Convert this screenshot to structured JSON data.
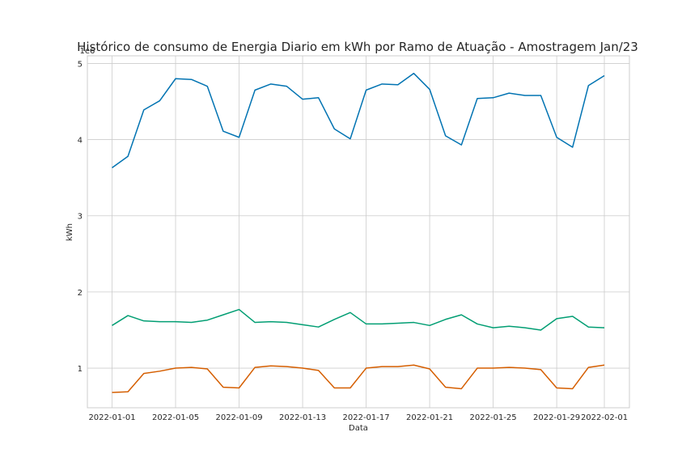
{
  "chart_data": {
    "type": "line",
    "title": "Histórico de consumo de Energia Diario em kWh por Ramo de Atuação - Amostragem Jan/23",
    "xlabel": "Data",
    "ylabel": "kWh",
    "y_offset_label": "1e6",
    "ylim": [
      0.48,
      5.1
    ],
    "y_ticks": [
      1,
      2,
      3,
      4,
      5
    ],
    "y_tick_labels": [
      "1",
      "2",
      "3",
      "4",
      "5"
    ],
    "x_tick_labels": [
      "2022-01-01",
      "2022-01-05",
      "2022-01-09",
      "2022-01-13",
      "2022-01-17",
      "2022-01-21",
      "2022-01-25",
      "2022-01-29",
      "2022-02-01"
    ],
    "x_tick_indices": [
      0,
      4,
      8,
      12,
      16,
      20,
      24,
      28,
      31
    ],
    "x": [
      "2022-01-01",
      "2022-01-02",
      "2022-01-03",
      "2022-01-04",
      "2022-01-05",
      "2022-01-06",
      "2022-01-07",
      "2022-01-08",
      "2022-01-09",
      "2022-01-10",
      "2022-01-11",
      "2022-01-12",
      "2022-01-13",
      "2022-01-14",
      "2022-01-15",
      "2022-01-16",
      "2022-01-17",
      "2022-01-18",
      "2022-01-19",
      "2022-01-20",
      "2022-01-21",
      "2022-01-22",
      "2022-01-23",
      "2022-01-24",
      "2022-01-25",
      "2022-01-26",
      "2022-01-27",
      "2022-01-28",
      "2022-01-29",
      "2022-01-30",
      "2022-01-31",
      "2022-02-01"
    ],
    "grid": true,
    "series": [
      {
        "color": "#0173b2",
        "values": [
          3.63,
          3.78,
          4.39,
          4.51,
          4.8,
          4.79,
          4.7,
          4.11,
          4.03,
          4.65,
          4.73,
          4.7,
          4.53,
          4.55,
          4.14,
          4.01,
          4.65,
          4.73,
          4.72,
          4.87,
          4.66,
          4.05,
          3.93,
          4.54,
          4.55,
          4.61,
          4.58,
          4.58,
          4.03,
          3.9,
          4.71,
          4.84
        ]
      },
      {
        "color": "#029e73",
        "values": [
          1.56,
          1.69,
          1.62,
          1.61,
          1.61,
          1.6,
          1.63,
          1.7,
          1.77,
          1.6,
          1.61,
          1.6,
          1.57,
          1.54,
          1.64,
          1.73,
          1.58,
          1.58,
          1.59,
          1.6,
          1.56,
          1.64,
          1.7,
          1.58,
          1.53,
          1.55,
          1.53,
          1.5,
          1.65,
          1.68,
          1.54,
          1.53
        ]
      },
      {
        "color": "#d55e00",
        "values": [
          0.68,
          0.69,
          0.93,
          0.96,
          1.0,
          1.01,
          0.99,
          0.75,
          0.74,
          1.01,
          1.03,
          1.02,
          1.0,
          0.97,
          0.74,
          0.74,
          1.0,
          1.02,
          1.02,
          1.04,
          0.99,
          0.75,
          0.73,
          1.0,
          1.0,
          1.01,
          1.0,
          0.98,
          0.74,
          0.73,
          1.01,
          1.04
        ]
      }
    ]
  }
}
